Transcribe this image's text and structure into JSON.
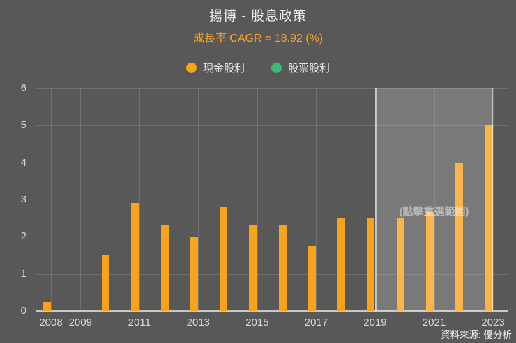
{
  "header": {
    "title": "揚博 - 股息政策",
    "subtitle": "成長率 CAGR = 18.92 (%)"
  },
  "legend": [
    {
      "label": "現金股利",
      "color": "#f8a31c"
    },
    {
      "label": "股票股利",
      "color": "#3cb973"
    }
  ],
  "selection_overlay": {
    "hint": "(點擊重選範圍)",
    "from": "2019",
    "to": "2023"
  },
  "source": "資料來源: 優分析",
  "colors": {
    "background": "#585858",
    "cash_dividend": "#f8a31c",
    "stock_dividend": "#3cb973",
    "subtitle_accent": "#f9a825",
    "axis_text": "#d8d8d8"
  },
  "chart_data": {
    "type": "bar",
    "title": "揚博 - 股息政策",
    "subtitle": "成長率 CAGR = 18.92 (%)",
    "categories": [
      "2008",
      "2009",
      "2010",
      "2011",
      "2012",
      "2013",
      "2014",
      "2015",
      "2016",
      "2017",
      "2018",
      "2019",
      "2020",
      "2021",
      "2022",
      "2023"
    ],
    "series": [
      {
        "name": "現金股利",
        "color": "#f8a31c",
        "values": [
          0.25,
          0,
          1.5,
          2.9,
          2.3,
          2.0,
          2.8,
          2.3,
          2.3,
          1.75,
          2.5,
          2.5,
          2.5,
          2.67,
          4.0,
          5.0
        ]
      },
      {
        "name": "股票股利",
        "color": "#3cb973",
        "values": [
          0,
          0,
          0,
          0,
          0,
          0,
          0,
          0,
          0,
          0,
          0,
          0,
          0,
          0,
          0,
          0
        ]
      }
    ],
    "xlabel": "",
    "ylabel": "",
    "ylim": [
      0,
      6
    ],
    "yticks": [
      0,
      1,
      2,
      3,
      4,
      5,
      6
    ],
    "xtick_labels": [
      "2008",
      "2009",
      "2011",
      "2013",
      "2015",
      "2017",
      "2019",
      "2021",
      "2023"
    ],
    "grid": true,
    "legend_position": "top-center",
    "highlight_range": {
      "from": "2019",
      "to": "2023",
      "label": "(點擊重選範圍)"
    }
  }
}
